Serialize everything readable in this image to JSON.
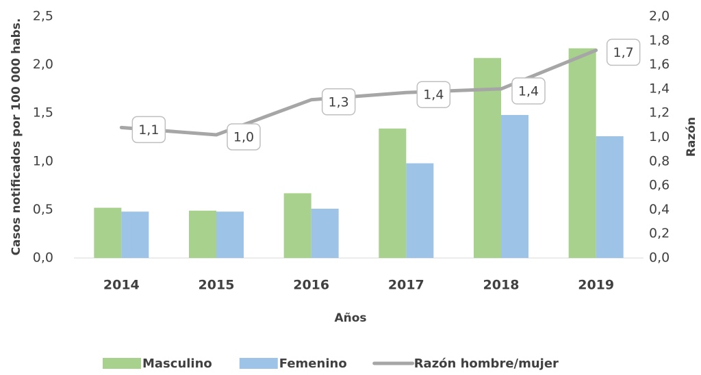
{
  "chart_data": {
    "type": "bar",
    "x_label": "Años",
    "y_label": "Casos notificados por 100 000 habs.",
    "y2_label": "Razón",
    "categories": [
      "2014",
      "2015",
      "2016",
      "2017",
      "2018",
      "2019"
    ],
    "series": [
      {
        "name": "Masculino",
        "type": "bar",
        "color": "#a9d18e",
        "values": [
          0.52,
          0.49,
          0.67,
          1.34,
          2.07,
          2.17
        ]
      },
      {
        "name": "Femenino",
        "type": "bar",
        "color": "#9dc3e6",
        "values": [
          0.48,
          0.48,
          0.51,
          0.98,
          1.48,
          1.26
        ]
      },
      {
        "name": "Razón hombre/mujer",
        "type": "line",
        "axis": "y2",
        "color": "#a6a6a6",
        "values": [
          1.08,
          1.02,
          1.31,
          1.37,
          1.4,
          1.72
        ],
        "value_labels": [
          "1,1",
          "1,0",
          "1,3",
          "1,4",
          "1,4",
          "1,7"
        ]
      }
    ],
    "ylim": [
      0,
      2.5
    ],
    "yticks": [
      {
        "value": 0,
        "label": "0,0"
      },
      {
        "value": 0.5,
        "label": "0,5"
      },
      {
        "value": 1,
        "label": "1,0"
      },
      {
        "value": 1.5,
        "label": "1,5"
      },
      {
        "value": 2,
        "label": "2,0"
      },
      {
        "value": 2.5,
        "label": "2,5"
      }
    ],
    "y2lim": [
      0,
      2.0
    ],
    "y2ticks": [
      {
        "value": 0,
        "label": "0,0"
      },
      {
        "value": 0.2,
        "label": "0,2"
      },
      {
        "value": 0.4,
        "label": "0,4"
      },
      {
        "value": 0.6,
        "label": "0,6"
      },
      {
        "value": 0.8,
        "label": "0,8"
      },
      {
        "value": 1,
        "label": "1,0"
      },
      {
        "value": 1.2,
        "label": "1,2"
      },
      {
        "value": 1.4,
        "label": "1,4"
      },
      {
        "value": 1.6,
        "label": "1,6"
      },
      {
        "value": 1.8,
        "label": "1,8"
      },
      {
        "value": 2,
        "label": "2,0"
      }
    ],
    "legend": "bottom"
  }
}
